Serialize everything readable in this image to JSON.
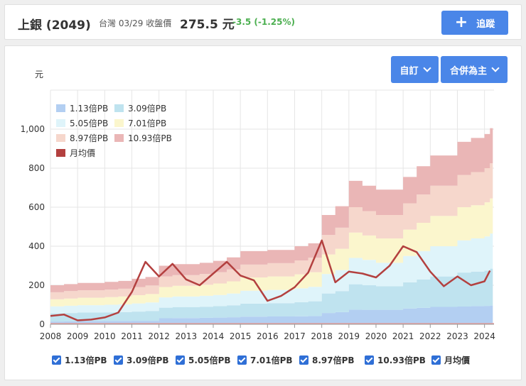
{
  "header": {
    "name": "上銀",
    "code": "(2049)",
    "market_info": "台灣 03/29 收盤價",
    "price": "275.5 元",
    "change": "-3.5 (-1.25%)",
    "track_label": "追蹤"
  },
  "controls": {
    "custom_label": "自訂",
    "merge_label": "合併為主"
  },
  "chart_data": {
    "type": "area",
    "y_unit_label": "元",
    "ylim": [
      0,
      1200
    ],
    "yticks": [
      "0",
      "200",
      "400",
      "600",
      "800",
      "1,000"
    ],
    "ytick_values": [
      0,
      200,
      400,
      600,
      800,
      1000
    ],
    "xlim": [
      2008.0,
      2024.35
    ],
    "xticks": [
      "2008",
      "2009",
      "2010",
      "2011",
      "2012",
      "2013",
      "2014",
      "2015",
      "2016",
      "2017",
      "2018",
      "2019",
      "2020",
      "2021",
      "2022",
      "2023",
      "2024"
    ],
    "grid": true,
    "legend_position": "top-left",
    "colors": {
      "b1": "#b3cff2",
      "b2": "#bfe3ef",
      "b3": "#dff4fa",
      "b4": "#fbf6cd",
      "b5": "#f6d7cc",
      "b6": "#eab6b6",
      "line": "#b3403f"
    },
    "series": [
      {
        "name": "1.13倍PB",
        "key": "b1"
      },
      {
        "name": "3.09倍PB",
        "key": "b2"
      },
      {
        "name": "5.05倍PB",
        "key": "b3"
      },
      {
        "name": "7.01倍PB",
        "key": "b4"
      },
      {
        "name": "8.97倍PB",
        "key": "b5"
      },
      {
        "name": "10.93倍PB",
        "key": "b6"
      },
      {
        "name": "月均價",
        "key": "line"
      }
    ],
    "x": [
      2008.0,
      2008.5,
      2009.0,
      2009.5,
      2010.0,
      2010.5,
      2011.0,
      2011.5,
      2012.0,
      2012.5,
      2013.0,
      2013.5,
      2014.0,
      2014.5,
      2015.0,
      2015.5,
      2016.0,
      2016.5,
      2017.0,
      2017.5,
      2018.0,
      2018.5,
      2019.0,
      2019.5,
      2020.0,
      2020.5,
      2021.0,
      2021.5,
      2022.0,
      2022.5,
      2023.0,
      2023.5,
      2024.0,
      2024.2
    ],
    "pb_bands": {
      "b1": [
        14,
        15,
        17,
        17,
        17,
        17,
        18,
        18,
        31,
        32,
        32,
        33,
        34,
        36,
        39,
        39,
        40,
        40,
        41,
        42,
        58,
        62,
        75,
        74,
        74,
        74,
        81,
        84,
        89,
        89,
        91,
        93,
        94,
        96
      ],
      "b2": [
        56,
        58,
        60,
        60,
        61,
        62,
        65,
        68,
        85,
        88,
        88,
        90,
        93,
        97,
        106,
        106,
        108,
        108,
        113,
        118,
        158,
        170,
        205,
        200,
        195,
        195,
        215,
        230,
        245,
        245,
        265,
        270,
        275,
        285
      ],
      "b3": [
        92,
        95,
        98,
        98,
        100,
        102,
        107,
        112,
        138,
        142,
        142,
        146,
        150,
        158,
        172,
        172,
        176,
        176,
        184,
        192,
        258,
        278,
        340,
        330,
        315,
        315,
        350,
        375,
        400,
        400,
        430,
        440,
        450,
        465
      ],
      "b4": [
        128,
        132,
        136,
        136,
        139,
        142,
        149,
        155,
        191,
        197,
        197,
        202,
        209,
        220,
        240,
        240,
        245,
        245,
        256,
        267,
        358,
        387,
        470,
        455,
        440,
        440,
        485,
        520,
        555,
        555,
        600,
        610,
        625,
        645
      ],
      "b5": [
        164,
        170,
        174,
        174,
        178,
        182,
        191,
        199,
        245,
        252,
        252,
        258,
        267,
        281,
        306,
        306,
        313,
        313,
        327,
        341,
        458,
        495,
        600,
        580,
        560,
        560,
        620,
        665,
        710,
        710,
        765,
        780,
        800,
        825
      ],
      "b6": [
        200,
        206,
        212,
        212,
        217,
        222,
        233,
        242,
        300,
        308,
        308,
        315,
        325,
        343,
        375,
        375,
        381,
        381,
        400,
        415,
        560,
        605,
        735,
        710,
        690,
        690,
        755,
        810,
        865,
        865,
        935,
        955,
        975,
        1005
      ]
    },
    "monthly_price": [
      43,
      50,
      20,
      24,
      35,
      60,
      165,
      320,
      245,
      310,
      230,
      200,
      260,
      320,
      250,
      225,
      120,
      145,
      190,
      265,
      430,
      215,
      270,
      260,
      240,
      300,
      400,
      370,
      270,
      195,
      245,
      200,
      220,
      275
    ]
  },
  "bottom_legend": [
    {
      "label": "1.13倍PB"
    },
    {
      "label": "3.09倍PB"
    },
    {
      "label": "5.05倍PB"
    },
    {
      "label": "7.01倍PB"
    },
    {
      "label": "8.97倍PB"
    },
    {
      "label": "10.93倍PB"
    },
    {
      "label": "月均價"
    }
  ]
}
